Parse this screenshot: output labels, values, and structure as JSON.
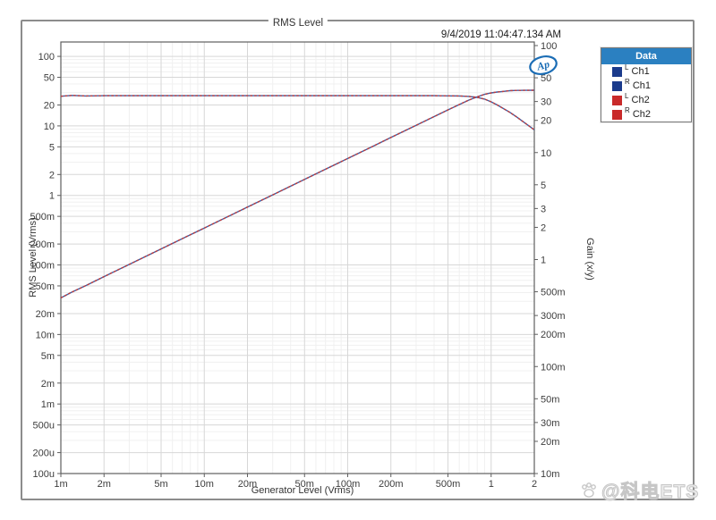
{
  "window": {
    "title": "RMS Level",
    "timestamp": "9/4/2019 11:04:47.134 AM"
  },
  "logo": {
    "text": "Ap"
  },
  "legend": {
    "header": "Data",
    "items": [
      {
        "side": "L",
        "channel": "Ch1",
        "color": "#1b3b8c"
      },
      {
        "side": "R",
        "channel": "Ch1",
        "color": "#1b3b8c"
      },
      {
        "side": "L",
        "channel": "Ch2",
        "color": "#c92a2a"
      },
      {
        "side": "R",
        "channel": "Ch2",
        "color": "#c92a2a"
      }
    ]
  },
  "watermark": {
    "icon": "paw-icon",
    "text": "@科电ETS"
  },
  "chart_data": {
    "type": "line",
    "title": "RMS Level",
    "xlabel": "Generator Level (Vrms)",
    "ylabel_left": "RMS Level (Vrms)",
    "ylabel_right": "Gain (x/y)",
    "xscale": "log",
    "yscale": "log",
    "grid": "on",
    "legend_position": "top-right-outside-plot",
    "xlim": [
      0.001,
      2
    ],
    "ylim_left": [
      0.0001,
      161
    ],
    "ylim_right": [
      0.01,
      108
    ],
    "x_ticks": [
      0.001,
      0.002,
      0.005,
      0.01,
      0.02,
      0.05,
      0.1,
      0.2,
      0.5,
      1,
      2
    ],
    "x_tick_labels": [
      "1m",
      "2m",
      "5m",
      "10m",
      "20m",
      "50m",
      "100m",
      "200m",
      "500m",
      "1",
      "2"
    ],
    "left_ticks": [
      100,
      50,
      20,
      10,
      5,
      2,
      1,
      0.5,
      0.2,
      0.1,
      0.05,
      0.02,
      0.01,
      0.005,
      0.002,
      0.001,
      0.0005,
      0.0002,
      0.0001
    ],
    "left_tick_labels": [
      "100",
      "50",
      "20",
      "10",
      "5",
      "2",
      "1",
      "500m",
      "200m",
      "100m",
      "50m",
      "20m",
      "10m",
      "5m",
      "2m",
      "1m",
      "500u",
      "200u",
      "100u"
    ],
    "right_ticks": [
      100,
      50,
      30,
      20,
      10,
      5,
      3,
      2,
      1,
      0.5,
      0.3,
      0.2,
      0.1,
      0.05,
      0.03,
      0.02,
      0.01
    ],
    "right_tick_labels": [
      "100",
      "50",
      "30",
      "20",
      "10",
      "5",
      "3",
      "2",
      "1",
      "500m",
      "300m",
      "200m",
      "100m",
      "50m",
      "30m",
      "20m",
      "10m"
    ],
    "x": [
      0.001,
      0.0012,
      0.0015,
      0.002,
      0.003,
      0.005,
      0.007,
      0.01,
      0.02,
      0.03,
      0.05,
      0.07,
      0.1,
      0.15,
      0.2,
      0.3,
      0.4,
      0.5,
      0.6,
      0.7,
      0.8,
      0.9,
      1.0,
      1.1,
      1.2,
      1.35,
      1.5,
      1.7,
      2.0
    ],
    "series": [
      {
        "name": "Ch1 L/R RMS Level",
        "axis": "left",
        "color": "#3d5fa5",
        "style": "solid",
        "y": [
          0.0336,
          0.041,
          0.0507,
          0.068,
          0.102,
          0.17,
          0.238,
          0.34,
          0.68,
          1.02,
          1.7,
          2.38,
          3.4,
          5.1,
          6.8,
          10.2,
          13.6,
          17.0,
          20.3,
          23.5,
          26.2,
          28.4,
          29.8,
          30.7,
          31.3,
          32.1,
          32.4,
          32.5,
          32.6
        ]
      },
      {
        "name": "Ch2 L/R RMS Level",
        "axis": "left",
        "color": "#c03c3c",
        "style": "dashed",
        "y": [
          0.0336,
          0.041,
          0.0507,
          0.068,
          0.102,
          0.17,
          0.238,
          0.34,
          0.68,
          1.02,
          1.7,
          2.38,
          3.4,
          5.1,
          6.8,
          10.2,
          13.6,
          17.0,
          20.3,
          23.5,
          26.2,
          28.4,
          29.8,
          30.7,
          31.3,
          32.1,
          32.4,
          32.5,
          32.6
        ]
      },
      {
        "name": "Ch1 L/R Gain",
        "axis": "right",
        "color": "#3d5fa5",
        "style": "solid",
        "y": [
          33.6,
          34.2,
          33.8,
          34.0,
          34.0,
          34.0,
          34.0,
          34.0,
          34.0,
          34.0,
          34.0,
          34.0,
          34.0,
          34.0,
          34.0,
          34.0,
          34.0,
          33.9,
          33.8,
          33.5,
          32.8,
          31.6,
          29.8,
          27.9,
          26.1,
          23.8,
          21.6,
          19.1,
          16.3
        ]
      },
      {
        "name": "Ch2 L/R Gain",
        "axis": "right",
        "color": "#c03c3c",
        "style": "dashed",
        "y": [
          33.6,
          34.2,
          33.8,
          34.0,
          34.0,
          34.0,
          34.0,
          34.0,
          34.0,
          34.0,
          34.0,
          34.0,
          34.0,
          34.0,
          34.0,
          34.0,
          34.0,
          33.9,
          33.8,
          33.5,
          32.8,
          31.6,
          29.8,
          27.9,
          26.1,
          23.8,
          21.6,
          19.1,
          16.3
        ]
      }
    ]
  }
}
